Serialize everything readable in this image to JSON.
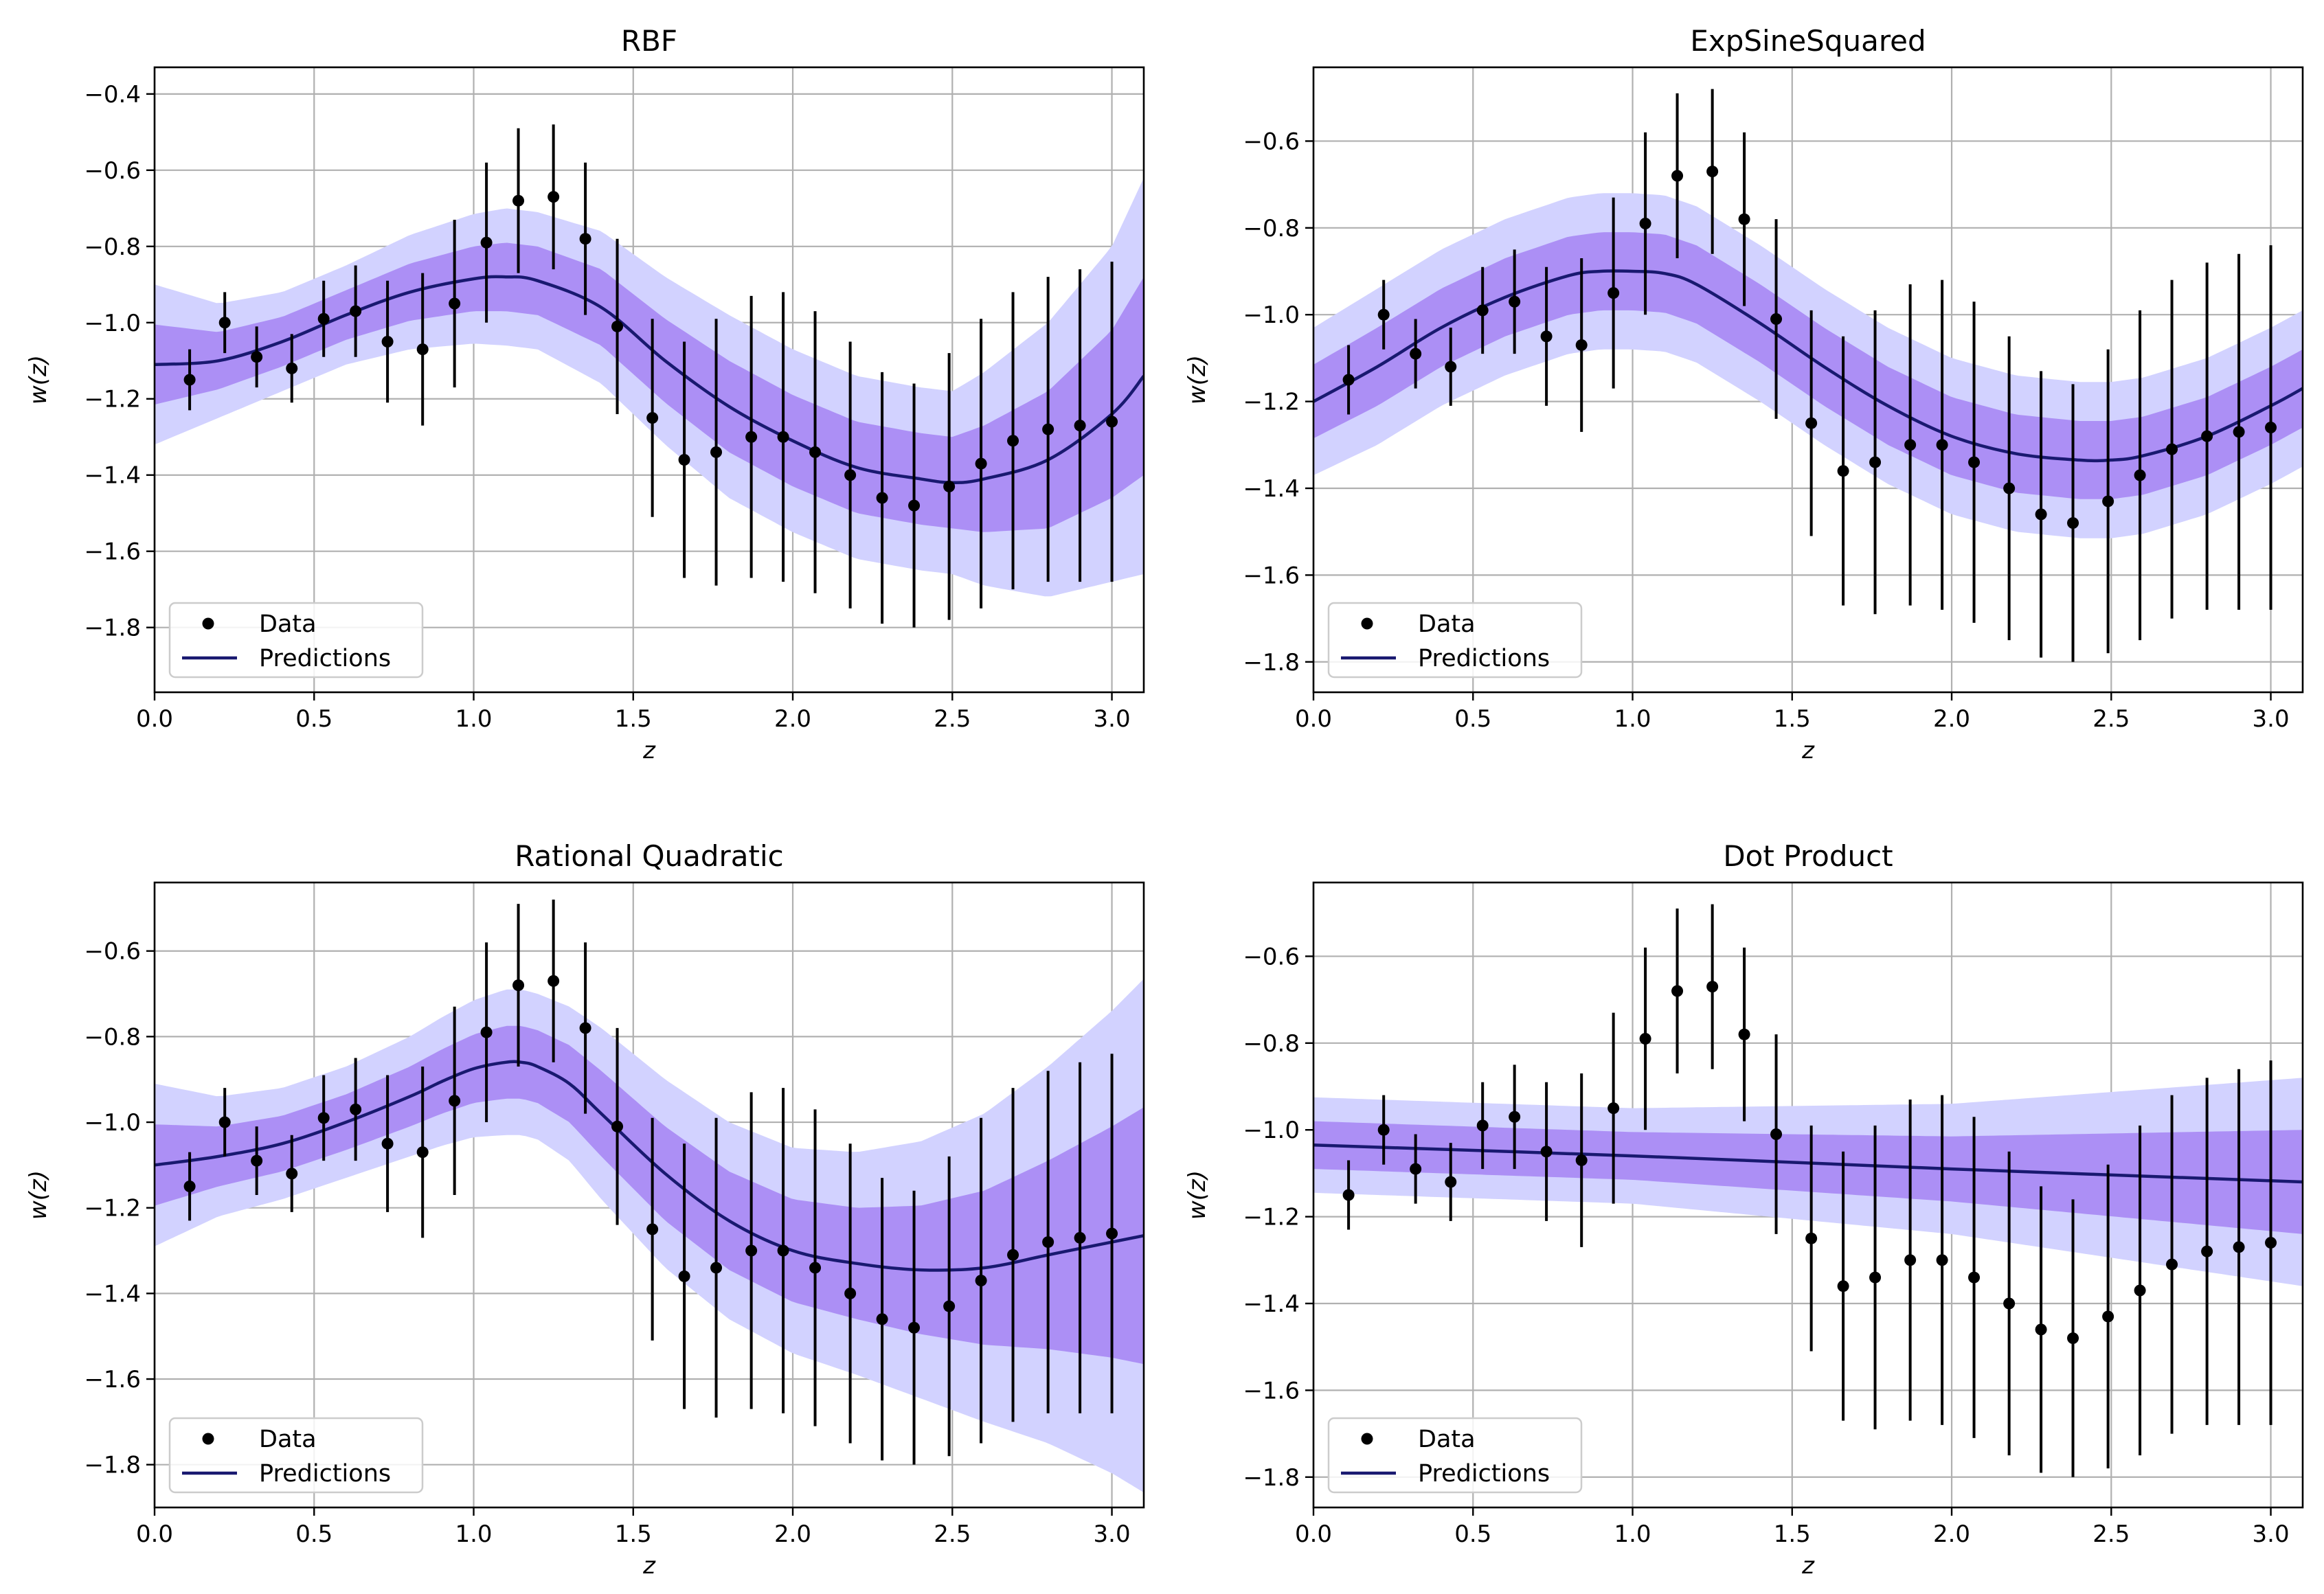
{
  "figure": {
    "colors": {
      "band_outer": "#d2d2ff",
      "band_inner": "#ac8ff5",
      "prediction_line": "#191970",
      "data_points": "#000000",
      "grid": "#b0b0b0"
    }
  },
  "chart_data": [
    {
      "type": "line",
      "title": "RBF",
      "xlabel": "z",
      "ylabel": "w(z)",
      "xlim": [
        0.0,
        3.1
      ],
      "ylim": [
        -1.97,
        -0.33
      ],
      "xticks": [
        0.0,
        0.5,
        1.0,
        1.5,
        2.0,
        2.5,
        3.0
      ],
      "xtick_labels": [
        "0.0",
        "0.5",
        "1.0",
        "1.5",
        "2.0",
        "2.5",
        "3.0"
      ],
      "yticks": [
        -1.8,
        -1.6,
        -1.4,
        -1.2,
        -1.0,
        -0.8,
        -0.6,
        -0.4
      ],
      "ytick_labels": [
        "−1.8",
        "−1.6",
        "−1.4",
        "−1.2",
        "−1.0",
        "−0.8",
        "−0.6",
        "−0.4"
      ],
      "grid": true,
      "legend": {
        "position": "lower-left",
        "entries": [
          "Data",
          "Predictions"
        ]
      },
      "data": {
        "x": [
          0.11,
          0.22,
          0.32,
          0.43,
          0.53,
          0.63,
          0.73,
          0.84,
          0.94,
          1.04,
          1.14,
          1.25,
          1.35,
          1.45,
          1.56,
          1.66,
          1.76,
          1.87,
          1.97,
          2.07,
          2.18,
          2.28,
          2.38,
          2.49,
          2.59,
          2.69,
          2.8,
          2.9,
          3.0
        ],
        "y": [
          -1.15,
          -1.0,
          -1.09,
          -1.12,
          -0.99,
          -0.97,
          -1.05,
          -1.07,
          -0.95,
          -0.79,
          -0.68,
          -0.67,
          -0.78,
          -1.01,
          -1.25,
          -1.36,
          -1.34,
          -1.3,
          -1.3,
          -1.34,
          -1.4,
          -1.46,
          -1.48,
          -1.43,
          -1.37,
          -1.31,
          -1.28,
          -1.27,
          -1.26
        ],
        "err": [
          0.08,
          0.08,
          0.08,
          0.09,
          0.1,
          0.12,
          0.16,
          0.2,
          0.22,
          0.21,
          0.19,
          0.19,
          0.2,
          0.23,
          0.26,
          0.31,
          0.35,
          0.37,
          0.38,
          0.37,
          0.35,
          0.33,
          0.32,
          0.35,
          0.38,
          0.39,
          0.4,
          0.41,
          0.42
        ]
      },
      "prediction": {
        "x": [
          0.0,
          0.2,
          0.4,
          0.6,
          0.8,
          1.0,
          1.1,
          1.2,
          1.4,
          1.6,
          1.8,
          2.0,
          2.2,
          2.4,
          2.5,
          2.6,
          2.8,
          3.0,
          3.1
        ],
        "mean": [
          -1.11,
          -1.1,
          -1.05,
          -0.98,
          -0.92,
          -0.885,
          -0.88,
          -0.89,
          -0.96,
          -1.1,
          -1.22,
          -1.31,
          -1.38,
          -1.41,
          -1.42,
          -1.41,
          -1.36,
          -1.24,
          -1.14
        ],
        "sd": [
          0.105,
          0.075,
          0.065,
          0.065,
          0.075,
          0.085,
          0.09,
          0.09,
          0.1,
          0.11,
          0.12,
          0.12,
          0.12,
          0.12,
          0.12,
          0.14,
          0.18,
          0.22,
          0.26
        ]
      }
    },
    {
      "type": "line",
      "title": "ExpSineSquared",
      "xlabel": "z",
      "ylabel": "w(z)",
      "xlim": [
        0.0,
        3.1
      ],
      "ylim": [
        -1.87,
        -0.43
      ],
      "xticks": [
        0.0,
        0.5,
        1.0,
        1.5,
        2.0,
        2.5,
        3.0
      ],
      "xtick_labels": [
        "0.0",
        "0.5",
        "1.0",
        "1.5",
        "2.0",
        "2.5",
        "3.0"
      ],
      "yticks": [
        -1.8,
        -1.6,
        -1.4,
        -1.2,
        -1.0,
        -0.8,
        -0.6
      ],
      "ytick_labels": [
        "−1.8",
        "−1.6",
        "−1.4",
        "−1.2",
        "−1.0",
        "−0.8",
        "−0.6"
      ],
      "grid": true,
      "legend": {
        "position": "lower-left",
        "entries": [
          "Data",
          "Predictions"
        ]
      },
      "data": {
        "x": [
          0.11,
          0.22,
          0.32,
          0.43,
          0.53,
          0.63,
          0.73,
          0.84,
          0.94,
          1.04,
          1.14,
          1.25,
          1.35,
          1.45,
          1.56,
          1.66,
          1.76,
          1.87,
          1.97,
          2.07,
          2.18,
          2.28,
          2.38,
          2.49,
          2.59,
          2.69,
          2.8,
          2.9,
          3.0
        ],
        "y": [
          -1.15,
          -1.0,
          -1.09,
          -1.12,
          -0.99,
          -0.97,
          -1.05,
          -1.07,
          -0.95,
          -0.79,
          -0.68,
          -0.67,
          -0.78,
          -1.01,
          -1.25,
          -1.36,
          -1.34,
          -1.3,
          -1.3,
          -1.34,
          -1.4,
          -1.46,
          -1.48,
          -1.43,
          -1.37,
          -1.31,
          -1.28,
          -1.27,
          -1.26
        ],
        "err": [
          0.08,
          0.08,
          0.08,
          0.09,
          0.1,
          0.12,
          0.16,
          0.2,
          0.22,
          0.21,
          0.19,
          0.19,
          0.2,
          0.23,
          0.26,
          0.31,
          0.35,
          0.37,
          0.38,
          0.37,
          0.35,
          0.33,
          0.32,
          0.35,
          0.38,
          0.39,
          0.4,
          0.41,
          0.42
        ]
      },
      "prediction": {
        "x": [
          0.0,
          0.2,
          0.4,
          0.6,
          0.8,
          0.9,
          1.0,
          1.1,
          1.2,
          1.4,
          1.6,
          1.8,
          2.0,
          2.2,
          2.4,
          2.5,
          2.6,
          2.8,
          3.0,
          3.1
        ],
        "mean": [
          -1.2,
          -1.12,
          -1.03,
          -0.96,
          -0.91,
          -0.9,
          -0.9,
          -0.905,
          -0.93,
          -1.02,
          -1.12,
          -1.21,
          -1.28,
          -1.32,
          -1.335,
          -1.335,
          -1.325,
          -1.28,
          -1.21,
          -1.17
        ],
        "sd": [
          0.085,
          0.09,
          0.09,
          0.09,
          0.09,
          0.09,
          0.09,
          0.09,
          0.09,
          0.09,
          0.09,
          0.09,
          0.09,
          0.09,
          0.09,
          0.09,
          0.09,
          0.09,
          0.09,
          0.09
        ]
      }
    },
    {
      "type": "line",
      "title": "Rational Quadratic",
      "xlabel": "z",
      "ylabel": "w(z)",
      "xlim": [
        0.0,
        3.1
      ],
      "ylim": [
        -1.9,
        -0.44
      ],
      "xticks": [
        0.0,
        0.5,
        1.0,
        1.5,
        2.0,
        2.5,
        3.0
      ],
      "xtick_labels": [
        "0.0",
        "0.5",
        "1.0",
        "1.5",
        "2.0",
        "2.5",
        "3.0"
      ],
      "yticks": [
        -1.8,
        -1.6,
        -1.4,
        -1.2,
        -1.0,
        -0.8,
        -0.6
      ],
      "ytick_labels": [
        "−1.8",
        "−1.6",
        "−1.4",
        "−1.2",
        "−1.0",
        "−0.8",
        "−0.6"
      ],
      "grid": true,
      "legend": {
        "position": "lower-left",
        "entries": [
          "Data",
          "Predictions"
        ]
      },
      "data": {
        "x": [
          0.11,
          0.22,
          0.32,
          0.43,
          0.53,
          0.63,
          0.73,
          0.84,
          0.94,
          1.04,
          1.14,
          1.25,
          1.35,
          1.45,
          1.56,
          1.66,
          1.76,
          1.87,
          1.97,
          2.07,
          2.18,
          2.28,
          2.38,
          2.49,
          2.59,
          2.69,
          2.8,
          2.9,
          3.0
        ],
        "y": [
          -1.15,
          -1.0,
          -1.09,
          -1.12,
          -0.99,
          -0.97,
          -1.05,
          -1.07,
          -0.95,
          -0.79,
          -0.68,
          -0.67,
          -0.78,
          -1.01,
          -1.25,
          -1.36,
          -1.34,
          -1.3,
          -1.3,
          -1.34,
          -1.4,
          -1.46,
          -1.48,
          -1.43,
          -1.37,
          -1.31,
          -1.28,
          -1.27,
          -1.26
        ],
        "err": [
          0.08,
          0.08,
          0.08,
          0.09,
          0.1,
          0.12,
          0.16,
          0.2,
          0.22,
          0.21,
          0.19,
          0.19,
          0.2,
          0.23,
          0.26,
          0.31,
          0.35,
          0.37,
          0.38,
          0.37,
          0.35,
          0.33,
          0.32,
          0.35,
          0.38,
          0.39,
          0.4,
          0.41,
          0.42
        ]
      },
      "prediction": {
        "x": [
          0.0,
          0.2,
          0.4,
          0.6,
          0.8,
          0.9,
          1.0,
          1.1,
          1.15,
          1.2,
          1.3,
          1.4,
          1.6,
          1.8,
          2.0,
          2.2,
          2.4,
          2.6,
          2.8,
          3.0,
          3.1
        ],
        "mean": [
          -1.1,
          -1.08,
          -1.05,
          -1.0,
          -0.94,
          -0.905,
          -0.875,
          -0.86,
          -0.86,
          -0.87,
          -0.91,
          -0.98,
          -1.12,
          -1.23,
          -1.3,
          -1.33,
          -1.345,
          -1.34,
          -1.31,
          -1.28,
          -1.265
        ],
        "sd": [
          0.095,
          0.07,
          0.065,
          0.065,
          0.07,
          0.075,
          0.08,
          0.085,
          0.085,
          0.085,
          0.09,
          0.1,
          0.11,
          0.115,
          0.12,
          0.13,
          0.15,
          0.18,
          0.22,
          0.27,
          0.3
        ]
      }
    },
    {
      "type": "line",
      "title": "Dot Product",
      "xlabel": "z",
      "ylabel": "w(z)",
      "xlim": [
        0.0,
        3.1
      ],
      "ylim": [
        -1.87,
        -0.43
      ],
      "xticks": [
        0.0,
        0.5,
        1.0,
        1.5,
        2.0,
        2.5,
        3.0
      ],
      "xtick_labels": [
        "0.0",
        "0.5",
        "1.0",
        "1.5",
        "2.0",
        "2.5",
        "3.0"
      ],
      "yticks": [
        -1.8,
        -1.6,
        -1.4,
        -1.2,
        -1.0,
        -0.8,
        -0.6
      ],
      "ytick_labels": [
        "−1.8",
        "−1.6",
        "−1.4",
        "−1.2",
        "−1.0",
        "−0.8",
        "−0.6"
      ],
      "grid": true,
      "legend": {
        "position": "lower-left",
        "entries": [
          "Data",
          "Predictions"
        ]
      },
      "data": {
        "x": [
          0.11,
          0.22,
          0.32,
          0.43,
          0.53,
          0.63,
          0.73,
          0.84,
          0.94,
          1.04,
          1.14,
          1.25,
          1.35,
          1.45,
          1.56,
          1.66,
          1.76,
          1.87,
          1.97,
          2.07,
          2.18,
          2.28,
          2.38,
          2.49,
          2.59,
          2.69,
          2.8,
          2.9,
          3.0
        ],
        "y": [
          -1.15,
          -1.0,
          -1.09,
          -1.12,
          -0.99,
          -0.97,
          -1.05,
          -1.07,
          -0.95,
          -0.79,
          -0.68,
          -0.67,
          -0.78,
          -1.01,
          -1.25,
          -1.36,
          -1.34,
          -1.3,
          -1.3,
          -1.34,
          -1.4,
          -1.46,
          -1.48,
          -1.43,
          -1.37,
          -1.31,
          -1.28,
          -1.27,
          -1.26
        ],
        "err": [
          0.08,
          0.08,
          0.08,
          0.09,
          0.1,
          0.12,
          0.16,
          0.2,
          0.22,
          0.21,
          0.19,
          0.19,
          0.2,
          0.23,
          0.26,
          0.31,
          0.35,
          0.37,
          0.38,
          0.37,
          0.35,
          0.33,
          0.32,
          0.35,
          0.38,
          0.39,
          0.4,
          0.41,
          0.42
        ]
      },
      "prediction": {
        "x": [
          0.0,
          1.0,
          2.0,
          3.1
        ],
        "mean": [
          -1.035,
          -1.06,
          -1.09,
          -1.12
        ],
        "sd": [
          0.055,
          0.055,
          0.075,
          0.12
        ]
      }
    }
  ]
}
